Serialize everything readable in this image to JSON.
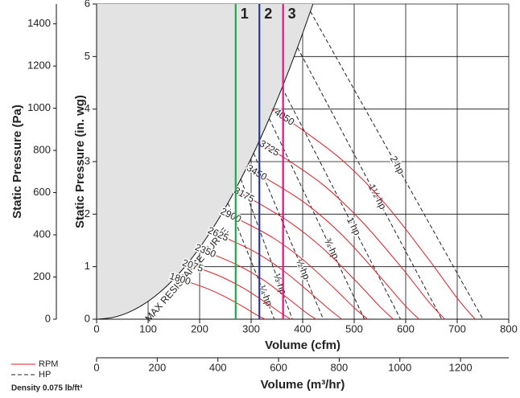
{
  "chart_data": {
    "type": "line",
    "xlabel": "Volume (cfm)",
    "xlim": [
      0,
      800
    ],
    "xticks": [
      0,
      100,
      200,
      300,
      400,
      500,
      600,
      700,
      800
    ],
    "ylabel": "Static Pressure (in. wg)",
    "ylim": [
      0,
      6
    ],
    "yticks": [
      0,
      1,
      2,
      3,
      4,
      5,
      6
    ],
    "y2label": "Static Pressure (Pa)",
    "y2lim": [
      0,
      1494
    ],
    "y2ticks": [
      0,
      200,
      400,
      600,
      800,
      1000,
      1200,
      1400
    ],
    "x2label": "Volume (m³/hr)",
    "x2lim": [
      0,
      1359
    ],
    "x2ticks": [
      0,
      200,
      400,
      600,
      800,
      1000,
      1200
    ],
    "grid": true,
    "max_resistance": {
      "label": "MAX RESISTANCE CURVE",
      "fill": "#e3e3e3",
      "x": [
        0,
        30,
        60,
        90,
        120,
        150,
        180,
        210,
        240,
        270,
        300,
        330,
        360,
        390,
        420
      ],
      "values": [
        0,
        0.031,
        0.122,
        0.276,
        0.49,
        0.765,
        1.102,
        1.5,
        1.959,
        2.48,
        3.061,
        3.704,
        4.408,
        5.173,
        6
      ]
    },
    "markers": [
      {
        "label": "1",
        "x": 270,
        "color": "#1fa74a"
      },
      {
        "label": "2",
        "x": 316,
        "color": "#2b3990"
      },
      {
        "label": "3",
        "x": 362,
        "color": "#e5157f"
      }
    ],
    "rpm_curves": {
      "legend": "RPM",
      "color": "#e31e24",
      "curves": [
        {
          "name": "1800",
          "x": [
            151,
            178,
            213,
            249,
            284,
            311,
            327
          ],
          "values": [
            0.79,
            0.71,
            0.59,
            0.43,
            0.24,
            0.08,
            0
          ]
        },
        {
          "name": "2075",
          "x": [
            174,
            205,
            246,
            287,
            328,
            359,
            377
          ],
          "values": [
            1.05,
            0.95,
            0.79,
            0.58,
            0.32,
            0.11,
            0
          ]
        },
        {
          "name": "2350",
          "x": [
            197,
            232,
            278,
            325,
            371,
            406,
            426
          ],
          "values": [
            1.35,
            1.21,
            1.01,
            0.74,
            0.4,
            0.13,
            0
          ]
        },
        {
          "name": "2625",
          "x": [
            220,
            259,
            311,
            363,
            415,
            454,
            476
          ],
          "values": [
            1.68,
            1.51,
            1.26,
            0.92,
            0.5,
            0.17,
            0
          ]
        },
        {
          "name": "2900",
          "x": [
            243,
            286,
            344,
            401,
            458,
            501,
            526
          ],
          "values": [
            2.05,
            1.85,
            1.54,
            1.13,
            0.62,
            0.21,
            0
          ]
        },
        {
          "name": "3175",
          "x": [
            267,
            314,
            376,
            439,
            502,
            549,
            576
          ],
          "values": [
            2.46,
            2.21,
            1.84,
            1.35,
            0.74,
            0.25,
            0
          ]
        },
        {
          "name": "3450",
          "x": [
            290,
            341,
            409,
            477,
            545,
            596,
            626
          ],
          "values": [
            2.9,
            2.61,
            2.18,
            1.6,
            0.87,
            0.29,
            0
          ]
        },
        {
          "name": "3725",
          "x": [
            313,
            368,
            442,
            515,
            589,
            644,
            676
          ],
          "values": [
            3.38,
            3.05,
            2.54,
            1.86,
            1.02,
            0.34,
            0
          ]
        },
        {
          "name": "4050",
          "x": [
            340,
            400,
            480,
            560,
            640,
            700,
            735
          ],
          "values": [
            4.0,
            3.6,
            3.0,
            2.2,
            1.2,
            0.4,
            0
          ]
        }
      ]
    },
    "hp_curves": {
      "legend": "HP",
      "color": "#222222",
      "curves": [
        {
          "name": "¼ hp",
          "x": [
            255,
            345
          ],
          "values": [
            2.21,
            0
          ]
        },
        {
          "name": "⅓ hp",
          "x": [
            280,
            380
          ],
          "values": [
            2.67,
            0
          ]
        },
        {
          "name": "½ hp",
          "x": [
            305,
            440
          ],
          "values": [
            3.16,
            0
          ]
        },
        {
          "name": "¾ hp",
          "x": [
            335,
            520
          ],
          "values": [
            3.82,
            0
          ]
        },
        {
          "name": "1 hp",
          "x": [
            360,
            590
          ],
          "values": [
            4.41,
            0
          ]
        },
        {
          "name": "1½ hp",
          "x": [
            390,
            670
          ],
          "values": [
            5.17,
            0
          ]
        },
        {
          "name": "2 hp",
          "x": [
            415,
            750
          ],
          "values": [
            5.86,
            0
          ]
        }
      ]
    },
    "density_note": "Density 0.075 lb/ft³"
  }
}
